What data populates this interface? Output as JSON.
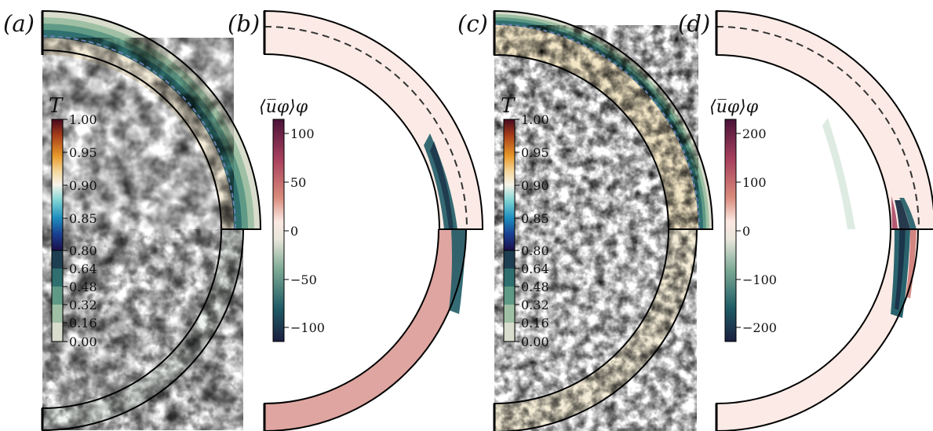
{
  "figure": {
    "panels": [
      {
        "id": "a",
        "label": "(a)",
        "kind": "temperature"
      },
      {
        "id": "b",
        "label": "(b)",
        "kind": "zonal-flow"
      },
      {
        "id": "c",
        "label": "(c)",
        "kind": "temperature"
      },
      {
        "id": "d",
        "label": "(d)",
        "kind": "zonal-flow"
      }
    ],
    "colorbar_T": {
      "title": "T",
      "upper_ticks": [
        "1.00",
        "0.95",
        "0.90",
        "0.85",
        "0.80"
      ],
      "lower_ticks": [
        "0.64",
        "0.48",
        "0.32",
        "0.16",
        "0.00"
      ]
    },
    "colorbar_u_b": {
      "title": "⟨u̅φ⟩φ",
      "ticks": [
        "100",
        "50",
        "0",
        "−50",
        "−100"
      ],
      "range": [
        -115,
        115
      ]
    },
    "colorbar_u_d": {
      "title": "⟨u̅φ⟩φ",
      "ticks": [
        "200",
        "100",
        "0",
        "−100",
        "−200"
      ],
      "range": [
        -230,
        230
      ]
    },
    "colors": {
      "cmap_T_upper": [
        "#450a1f",
        "#a63c1a",
        "#e89a2a",
        "#f4d9a0",
        "#f7f3ea",
        "#7fd4d4",
        "#1f8fbf",
        "#1a3d8f",
        "#1a0f4a"
      ],
      "cmap_T_lower": [
        "#d8dccc",
        "#9fc0a4",
        "#5f9a86",
        "#2f6f6f",
        "#1e3f52"
      ],
      "cmap_u": [
        "#1a1e3f",
        "#1f5c66",
        "#7aa893",
        "#e8e6da",
        "#fbe8e2",
        "#d88a7a",
        "#a8405e",
        "#4a1238"
      ]
    }
  }
}
